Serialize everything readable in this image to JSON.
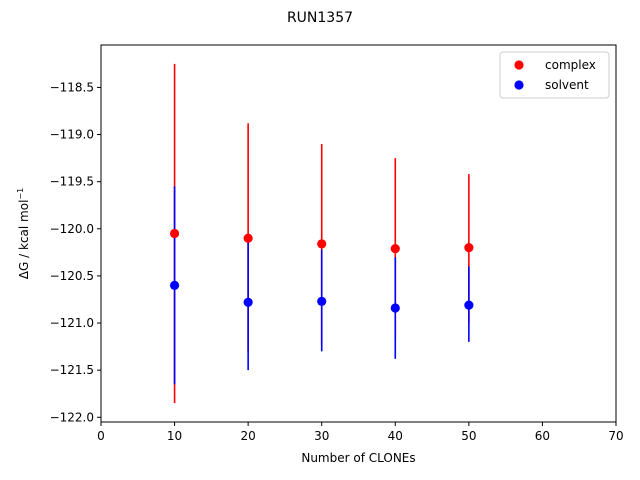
{
  "chart_data": {
    "type": "scatter",
    "title": "RUN1357",
    "xlabel": "Number of CLONEs",
    "ylabel_main": "ΔG / kcal mol",
    "ylabel_sup": "−1",
    "xlim": [
      0,
      70
    ],
    "ylim": [
      -122.05,
      -118.05
    ],
    "xticks": [
      0,
      10,
      20,
      30,
      40,
      50,
      60,
      70
    ],
    "xtick_labels": [
      "0",
      "10",
      "20",
      "30",
      "40",
      "50",
      "60",
      "70"
    ],
    "yticks": [
      -118.5,
      -119.0,
      -119.5,
      -120.0,
      -120.5,
      -121.0,
      -121.5,
      -122.0
    ],
    "ytick_labels": [
      "−118.5",
      "−119.0",
      "−119.5",
      "−120.0",
      "−120.5",
      "−121.0",
      "−121.5",
      "−122.0"
    ],
    "grid": false,
    "legend_position": "top-right",
    "series": [
      {
        "name": "complex",
        "color": "#ff0000",
        "x": [
          10,
          20,
          30,
          40,
          50
        ],
        "y": [
          -120.05,
          -120.1,
          -120.16,
          -120.21,
          -120.2
        ],
        "yerr_low": [
          -121.85,
          -121.3,
          -121.23,
          -121.17,
          -121.0
        ],
        "yerr_high": [
          -118.25,
          -118.88,
          -119.1,
          -119.25,
          -119.42
        ]
      },
      {
        "name": "solvent",
        "color": "#0000ff",
        "x": [
          10,
          20,
          30,
          40,
          50
        ],
        "y": [
          -120.6,
          -120.78,
          -120.77,
          -120.84,
          -120.81
        ],
        "yerr_low": [
          -121.65,
          -121.5,
          -121.3,
          -121.38,
          -121.2
        ],
        "yerr_high": [
          -119.55,
          -120.08,
          -120.22,
          -120.3,
          -120.4
        ]
      }
    ]
  }
}
